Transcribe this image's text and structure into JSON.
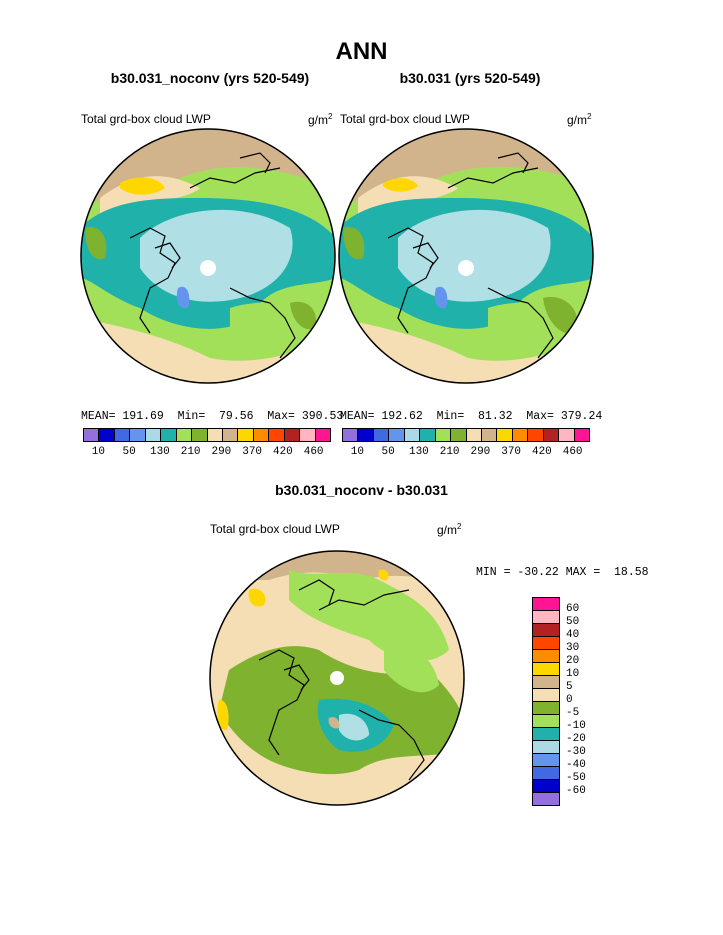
{
  "title": "ANN",
  "panels": [
    {
      "subtitle": "b30.031_noconv (yrs 520-549)",
      "field_label": "Total grd-box cloud LWP",
      "units": "g/m",
      "units_exp": "2",
      "stats": "MEAN= 191.69  Min=  79.56  Max= 390.53"
    },
    {
      "subtitle": "b30.031 (yrs 520-549)",
      "field_label": "Total grd-box cloud LWP",
      "units": "g/m",
      "units_exp": "2",
      "stats": "MEAN= 192.62  Min=  81.32  Max= 379.24"
    }
  ],
  "colorbar_top": {
    "colors": [
      "#9370db",
      "#0000cd",
      "#4169e1",
      "#6495ed",
      "#add8e6",
      "#20b2aa",
      "#a3e05a",
      "#7fb22f",
      "#f5deb3",
      "#d2b48c",
      "#ffd700",
      "#ff8c00",
      "#ff4500",
      "#b22222",
      "#ffb6c1",
      "#ff1493"
    ],
    "labels": [
      "10",
      "50",
      "130",
      "210",
      "290",
      "370",
      "420",
      "460"
    ]
  },
  "diff": {
    "title": "b30.031_noconv - b30.031",
    "field_label": "Total grd-box cloud LWP",
    "units": "g/m",
    "units_exp": "2",
    "stats": "MIN = -30.22 MAX =  18.58",
    "colorbar": {
      "colors": [
        "#ff1493",
        "#ffb6c1",
        "#b22222",
        "#ff4500",
        "#ff8c00",
        "#ffd700",
        "#d2b48c",
        "#f5deb3",
        "#7fb22f",
        "#a3e05a",
        "#20b2aa",
        "#add8e6",
        "#6495ed",
        "#4169e1",
        "#0000cd",
        "#9370db"
      ],
      "labels": [
        "60",
        "50",
        "40",
        "30",
        "20",
        "10",
        "5",
        "0",
        "-5",
        "-10",
        "-20",
        "-30",
        "-40",
        "-50",
        "-60"
      ]
    }
  },
  "colors": {
    "ocean_tan": "#f5deb3",
    "green": "#a3e05a",
    "dkgreen": "#7fb22f",
    "teal": "#20b2aa",
    "ice": "#b0e0e6",
    "tan": "#d2b48c",
    "gold": "#ffd700",
    "blue": "#6495ed"
  }
}
